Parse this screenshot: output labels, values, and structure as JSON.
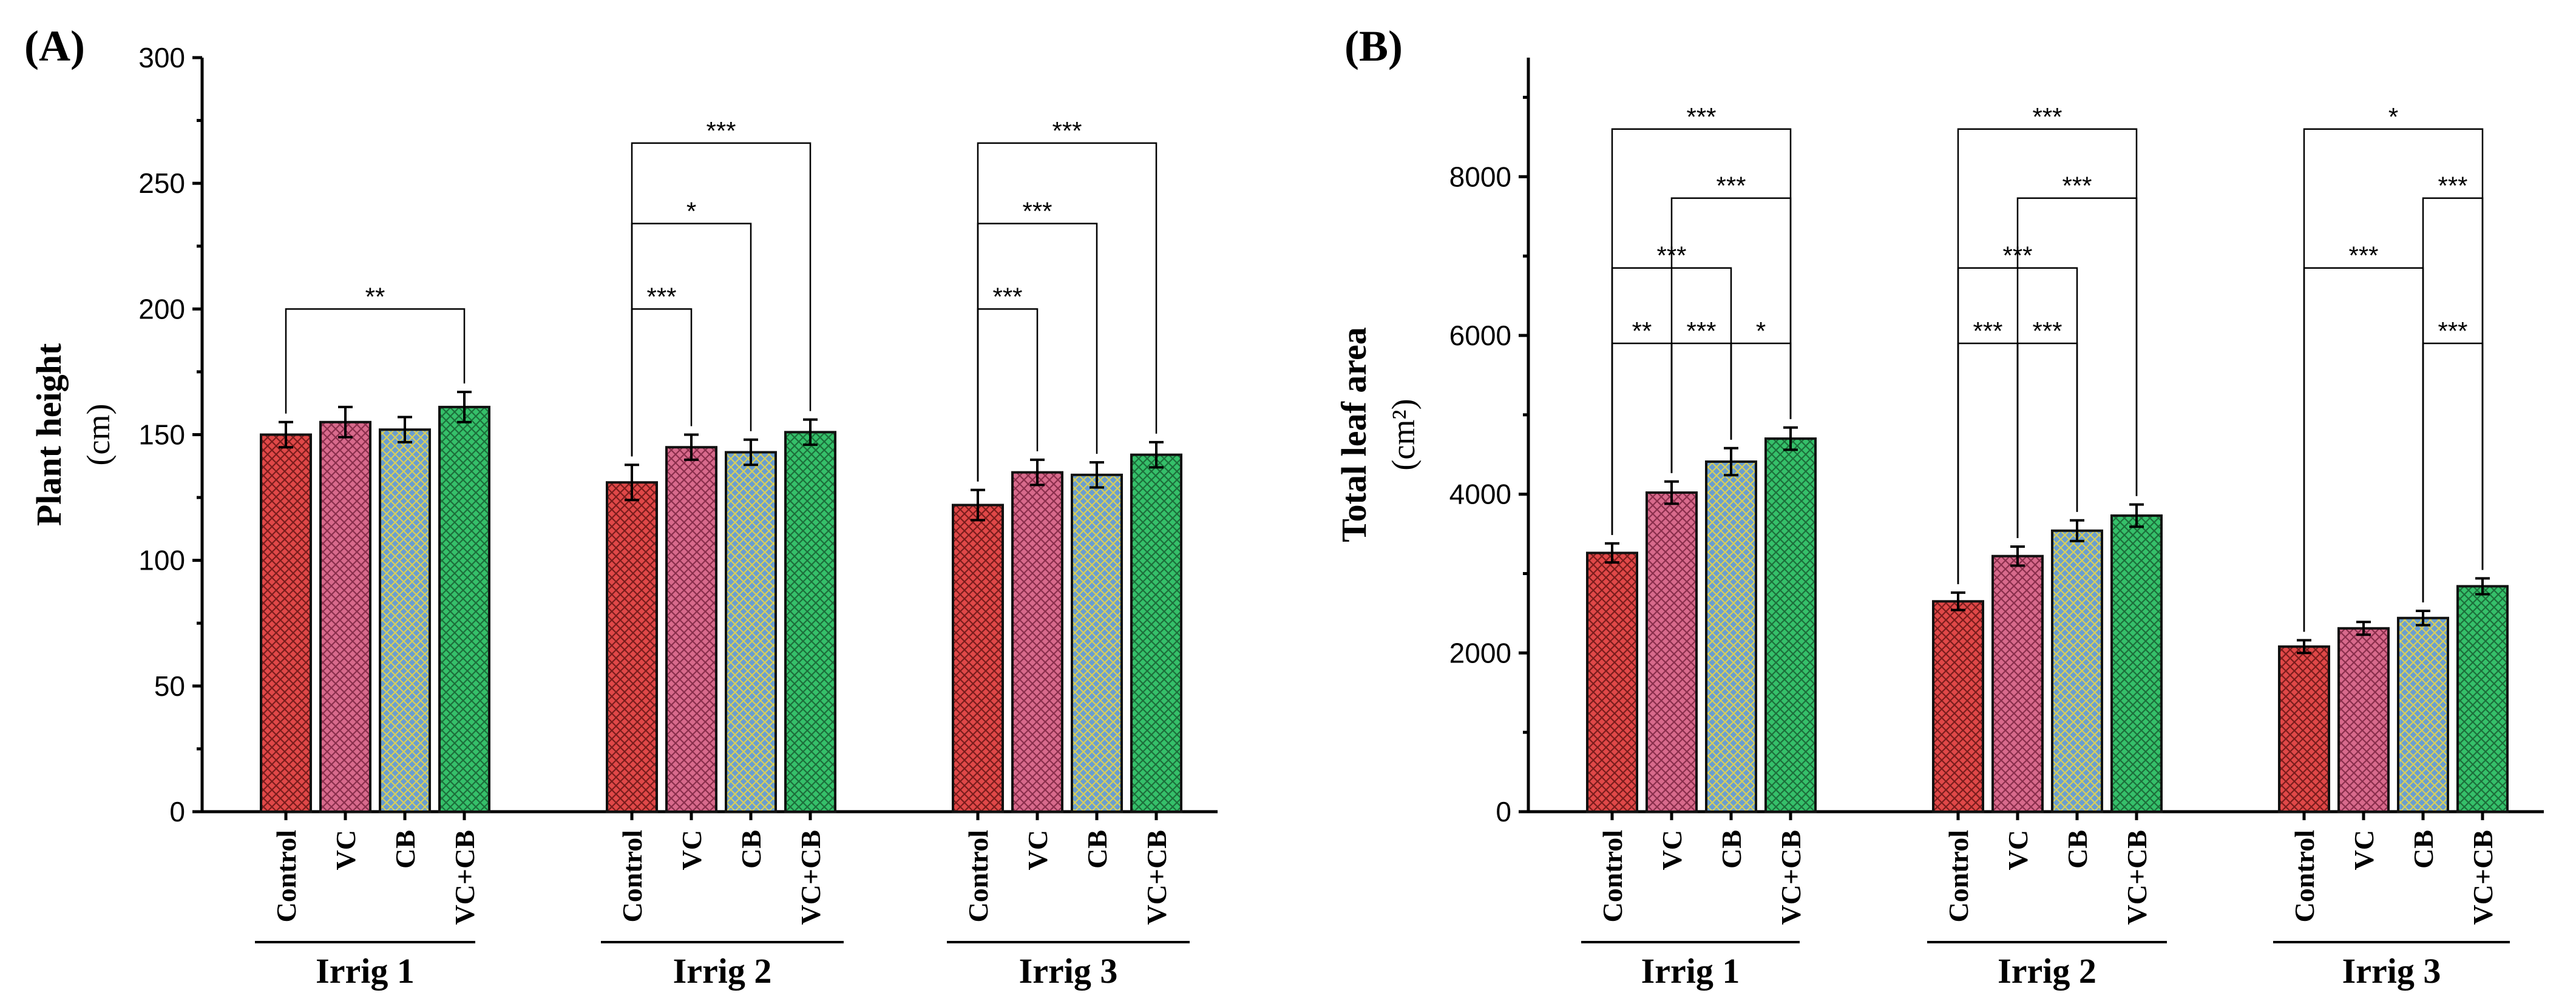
{
  "chart_data": [
    {
      "panel_label": "(A)",
      "type": "bar",
      "ylabel": "Plant height",
      "yunit": "(cm)",
      "ylim": [
        0,
        300
      ],
      "yticks": [
        0,
        50,
        100,
        150,
        200,
        250,
        300
      ],
      "groups": [
        "Irrig 1",
        "Irrig 2",
        "Irrig 3"
      ],
      "categories": [
        "Control",
        "VC",
        "CB",
        "VC+CB"
      ],
      "values": [
        [
          150,
          155,
          152,
          161
        ],
        [
          131,
          145,
          143,
          151
        ],
        [
          122,
          135,
          134,
          142
        ]
      ],
      "errors": [
        [
          5,
          6,
          5,
          6
        ],
        [
          7,
          5,
          5,
          5
        ],
        [
          6,
          5,
          5,
          5
        ]
      ],
      "significance": [
        {
          "group": 0,
          "from": 0,
          "to": 3,
          "label": "**",
          "level": 200
        },
        {
          "group": 1,
          "from": 0,
          "to": 1,
          "label": "***",
          "level": 200
        },
        {
          "group": 1,
          "from": 0,
          "to": 2,
          "label": "*",
          "level": 234
        },
        {
          "group": 1,
          "from": 0,
          "to": 3,
          "label": "***",
          "level": 266
        },
        {
          "group": 2,
          "from": 0,
          "to": 1,
          "label": "***",
          "level": 200
        },
        {
          "group": 2,
          "from": 0,
          "to": 2,
          "label": "***",
          "level": 234
        },
        {
          "group": 2,
          "from": 0,
          "to": 3,
          "label": "***",
          "level": 266
        }
      ]
    },
    {
      "panel_label": "(B)",
      "type": "bar",
      "ylabel": "Total leaf area",
      "yunit": "(cm²)",
      "ylim": [
        0,
        9500
      ],
      "yticks": [
        0,
        2000,
        4000,
        6000,
        8000
      ],
      "groups": [
        "Irrig 1",
        "Irrig 2",
        "Irrig 3"
      ],
      "categories": [
        "Control",
        "VC",
        "CB",
        "VC+CB"
      ],
      "values": [
        [
          3260,
          4020,
          4410,
          4700
        ],
        [
          2650,
          3220,
          3540,
          3730
        ],
        [
          2080,
          2310,
          2440,
          2840
        ]
      ],
      "errors": [
        [
          120,
          140,
          170,
          140
        ],
        [
          110,
          120,
          130,
          140
        ],
        [
          80,
          80,
          90,
          100
        ]
      ],
      "significance": [
        {
          "group": 0,
          "from": 0,
          "to": 1,
          "label": "**",
          "level": 5900
        },
        {
          "group": 0,
          "from": 1,
          "to": 2,
          "label": "***",
          "level": 5900
        },
        {
          "group": 0,
          "from": 2,
          "to": 3,
          "label": "*",
          "level": 5900
        },
        {
          "group": 0,
          "from": 0,
          "to": 2,
          "label": "***",
          "level": 6850
        },
        {
          "group": 0,
          "from": 1,
          "to": 3,
          "label": "***",
          "level": 7730
        },
        {
          "group": 0,
          "from": 0,
          "to": 3,
          "label": "***",
          "level": 8600
        },
        {
          "group": 1,
          "from": 0,
          "to": 1,
          "label": "***",
          "level": 5900
        },
        {
          "group": 1,
          "from": 1,
          "to": 2,
          "label": "***",
          "level": 5900
        },
        {
          "group": 1,
          "from": 0,
          "to": 2,
          "label": "***",
          "level": 6850
        },
        {
          "group": 1,
          "from": 1,
          "to": 3,
          "label": "***",
          "level": 7730
        },
        {
          "group": 1,
          "from": 0,
          "to": 3,
          "label": "***",
          "level": 8600
        },
        {
          "group": 2,
          "from": 2,
          "to": 3,
          "label": "***",
          "level": 5900
        },
        {
          "group": 2,
          "from": 0,
          "to": 2,
          "label": "***",
          "level": 6850
        },
        {
          "group": 2,
          "from": 2,
          "to": 3,
          "label": "***",
          "level": 7730
        },
        {
          "group": 2,
          "from": 0,
          "to": 3,
          "label": "*",
          "level": 8600
        }
      ]
    }
  ],
  "colors": {
    "Control": "#e04848",
    "VC": "#d86a8c",
    "CB": "#6a9ed0",
    "VC+CB": "#35c06a",
    "Control_hatch": "#7a1c1c",
    "VC_hatch": "#8a2e4c",
    "CB_hatch": "#d8cf5a",
    "VC+CB_hatch": "#1c6e3a"
  }
}
